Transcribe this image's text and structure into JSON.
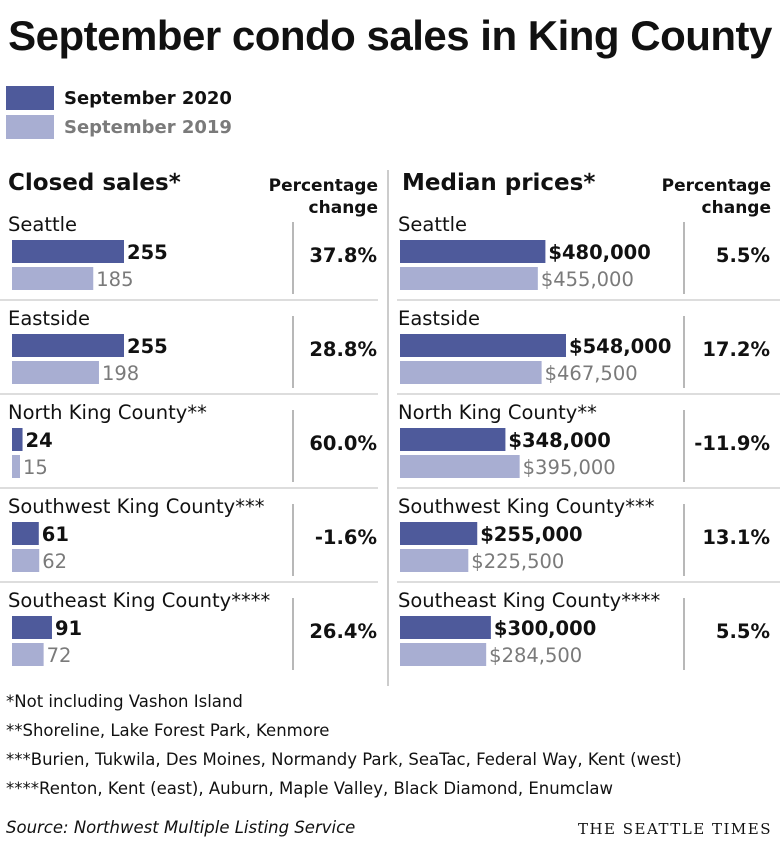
{
  "title": "September condo sales in King County",
  "legend": [
    {
      "label": "September 2020",
      "color": "#4e5a9b"
    },
    {
      "label": "September 2019",
      "color": "#a8aed2"
    }
  ],
  "pct_header": [
    "Percentage",
    "change"
  ],
  "chart_data": [
    {
      "type": "bar",
      "title": "Closed sales*",
      "categories": [
        "Seattle",
        "Eastside",
        "North King County**",
        "Southwest King County***",
        "Southeast King County****"
      ],
      "series": [
        {
          "name": "September 2020",
          "values": [
            255,
            255,
            24,
            61,
            91
          ],
          "labels": [
            "255",
            "255",
            "24",
            "61",
            "91"
          ]
        },
        {
          "name": "September 2019",
          "values": [
            185,
            198,
            15,
            62,
            72
          ],
          "labels": [
            "185",
            "198",
            "15",
            "62",
            "72"
          ]
        }
      ],
      "pct_change": [
        "37.8%",
        "28.8%",
        "60.0%",
        "-1.6%",
        "26.4%"
      ]
    },
    {
      "type": "bar",
      "title": "Median prices*",
      "categories": [
        "Seattle",
        "Eastside",
        "North King County**",
        "Southwest King County***",
        "Southeast King County****"
      ],
      "series": [
        {
          "name": "September 2020",
          "values": [
            480000,
            548000,
            348000,
            255000,
            300000
          ],
          "labels": [
            "$480,000",
            "$548,000",
            "$348,000",
            "$255,000",
            "$300,000"
          ]
        },
        {
          "name": "September 2019",
          "values": [
            455000,
            467500,
            395000,
            225500,
            284500
          ],
          "labels": [
            "$455,000",
            "$467,500",
            "$395,000",
            "$225,500",
            "$284,500"
          ]
        }
      ],
      "pct_change": [
        "5.5%",
        "17.2%",
        "-11.9%",
        "13.1%",
        "5.5%"
      ]
    }
  ],
  "footnotes": [
    "*Not including Vashon Island",
    "**Shoreline, Lake Forest Park, Kenmore",
    "***Burien, Tukwila, Des Moines, Normandy Park, SeaTac, Federal Way, Kent (west)",
    "****Renton, Kent (east), Auburn, Maple Valley, Black Diamond, Enumclaw"
  ],
  "source": "Source: Northwest Multiple Listing Service",
  "brand": "THE SEATTLE TIMES"
}
